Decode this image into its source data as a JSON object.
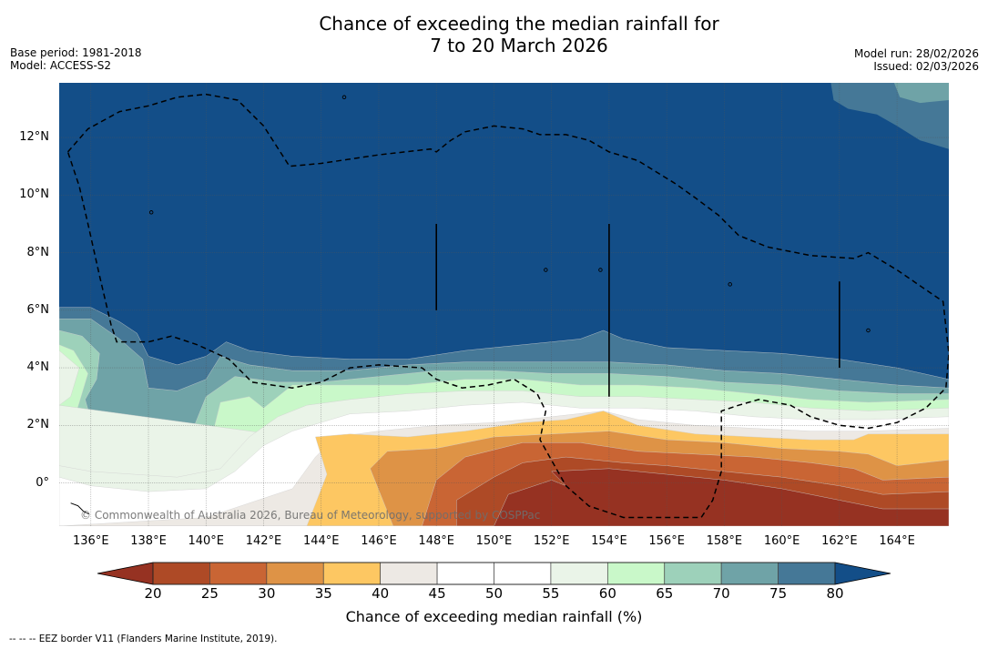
{
  "title": {
    "line1": "Chance of exceeding the median rainfall for",
    "line2": "7 to 20 March 2026"
  },
  "meta_left": {
    "base_period": "Base period: 1981-2018",
    "model": "Model: ACCESS-S2"
  },
  "meta_right": {
    "model_run": "Model run: 28/02/2026",
    "issued": "Issued: 02/03/2026"
  },
  "map": {
    "lon_range": [
      134.9,
      165.8
    ],
    "lat_range": [
      -1.5,
      13.9
    ],
    "lat_ticks": [
      {
        "value": 12,
        "label": "12°N"
      },
      {
        "value": 10,
        "label": "10°N"
      },
      {
        "value": 8,
        "label": "8°N"
      },
      {
        "value": 6,
        "label": "6°N"
      },
      {
        "value": 4,
        "label": "4°N"
      },
      {
        "value": 2,
        "label": "2°N"
      },
      {
        "value": 0,
        "label": "0°"
      }
    ],
    "lon_ticks": [
      {
        "value": 136,
        "label": "136°E"
      },
      {
        "value": 138,
        "label": "138°E"
      },
      {
        "value": 140,
        "label": "140°E"
      },
      {
        "value": 142,
        "label": "142°E"
      },
      {
        "value": 144,
        "label": "144°E"
      },
      {
        "value": 146,
        "label": "146°E"
      },
      {
        "value": 148,
        "label": "148°E"
      },
      {
        "value": 150,
        "label": "150°E"
      },
      {
        "value": 152,
        "label": "152°E"
      },
      {
        "value": 154,
        "label": "154°E"
      },
      {
        "value": 156,
        "label": "156°E"
      },
      {
        "value": 158,
        "label": "158°E"
      },
      {
        "value": 160,
        "label": "160°E"
      },
      {
        "value": 162,
        "label": "162°E"
      },
      {
        "value": 164,
        "label": "164°E"
      }
    ],
    "copyright": "© Commonwealth of Australia 2026, Bureau of Meteorology, supported by COSPPac",
    "background_class_color": "#134e88"
  },
  "colorbar": {
    "title": "Chance of exceeding median rainfall (%)",
    "extend": "both",
    "under_color": "#963222",
    "over_color": "#134e88",
    "boundaries": [
      20,
      25,
      30,
      35,
      40,
      45,
      50,
      55,
      60,
      65,
      70,
      75,
      80
    ],
    "colors": [
      "#ae4a26",
      "#c96534",
      "#de9346",
      "#fdc762",
      "#ede9e4",
      "#ffffff",
      "#ffffff",
      "#eaf4e8",
      "#c9f8c9",
      "#9dd1ba",
      "#6fa3a7",
      "#457897"
    ]
  },
  "footnote": "-- -- -- EEZ border V11 (Flanders Marine Institute, 2019)."
}
